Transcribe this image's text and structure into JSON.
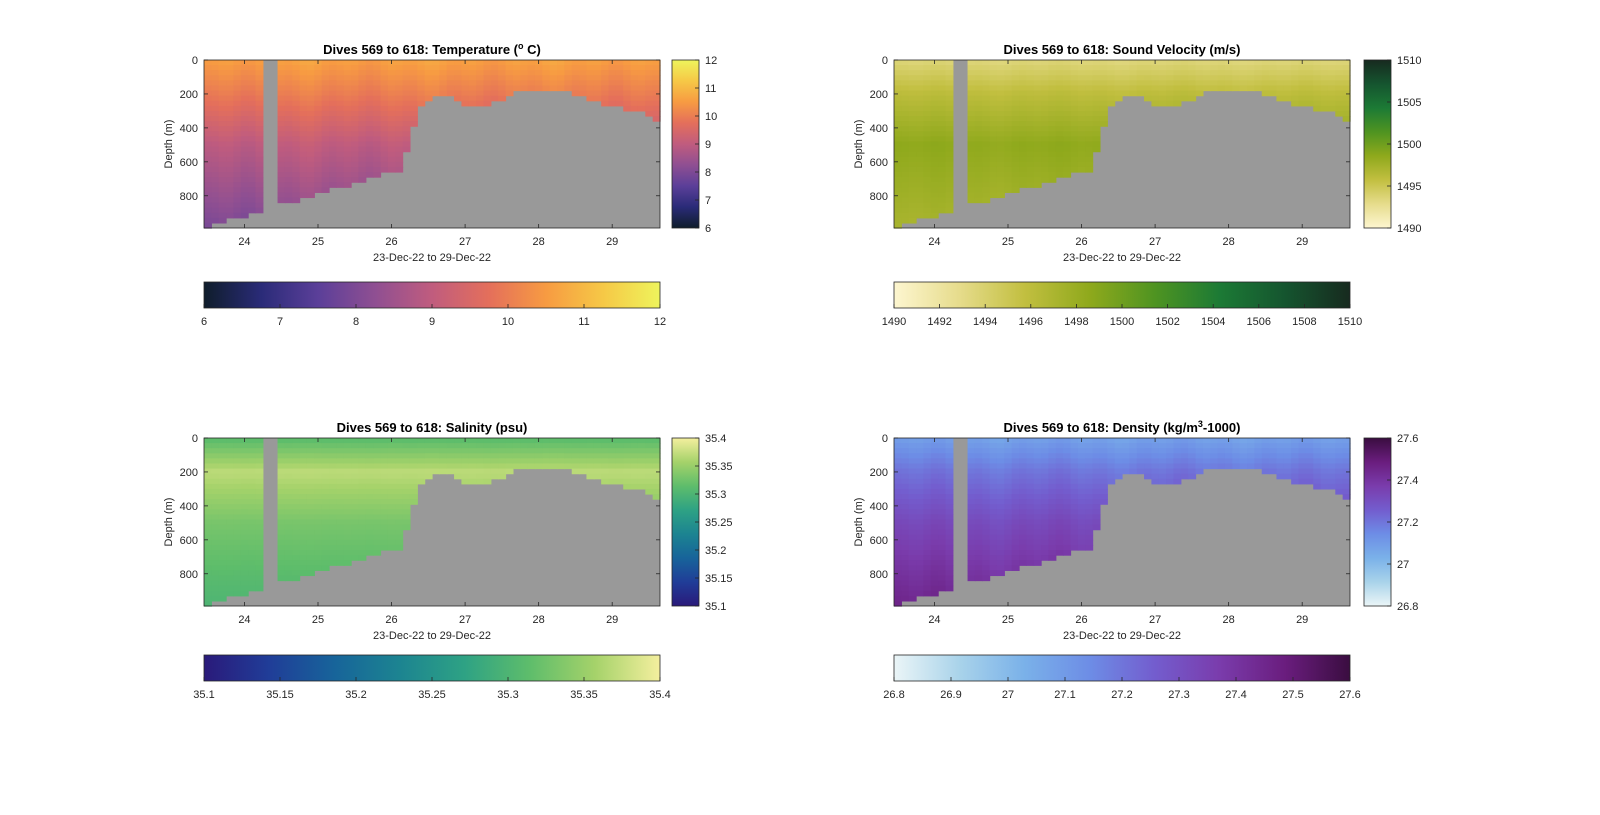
{
  "figure": {
    "background": "#ffffff",
    "no_data_color": "#999999"
  },
  "chart_data": [
    {
      "type": "heatmap",
      "id": "temp",
      "title": "Dives 569 to 618: Temperature (°C)",
      "title_parts": {
        "pre": "Dives 569 to 618: Temperature (",
        "sup": "o",
        "post": " C)"
      },
      "xlabel": "23-Dec-22 to 29-Dec-22",
      "ylabel": "Depth (m)",
      "xlim": [
        23.45,
        29.65
      ],
      "ylim": [
        0,
        990
      ],
      "y_reversed": true,
      "x_ticks": [
        24,
        25,
        26,
        27,
        28,
        29
      ],
      "y_ticks": [
        0,
        200,
        400,
        600,
        800
      ],
      "colormap": [
        "#0f1d2b",
        "#2a2b78",
        "#5b3f99",
        "#8f4f92",
        "#c05c7e",
        "#e46f5b",
        "#f79b42",
        "#f6c846",
        "#eef45c"
      ],
      "clim": [
        6,
        12
      ],
      "colorbar_ticks": [
        6,
        7,
        8,
        9,
        10,
        11,
        12
      ],
      "horizontal_colorbar_ticks": [
        6,
        7,
        8,
        9,
        10,
        11,
        12
      ],
      "profile": {
        "surface": 10.6,
        "mid": 10.0,
        "deep": 9.0,
        "bottom": 8.0
      }
    },
    {
      "type": "heatmap",
      "id": "sv",
      "title": "Dives 569 to 618: Sound Velocity (m/s)",
      "xlabel": "23-Dec-22 to 29-Dec-22",
      "ylabel": "Depth (m)",
      "xlim": [
        23.45,
        29.65
      ],
      "ylim": [
        0,
        990
      ],
      "y_reversed": true,
      "x_ticks": [
        24,
        25,
        26,
        27,
        28,
        29
      ],
      "y_ticks": [
        0,
        200,
        400,
        600,
        800
      ],
      "colormap": [
        "#fdf6d0",
        "#e6dc8c",
        "#c2bf40",
        "#8fa91c",
        "#4f9421",
        "#1c7a35",
        "#15552f",
        "#172a1f"
      ],
      "clim": [
        1490,
        1510
      ],
      "colorbar_ticks": [
        1490,
        1495,
        1500,
        1505,
        1510
      ],
      "horizontal_colorbar_ticks": [
        1490,
        1492,
        1494,
        1496,
        1498,
        1500,
        1502,
        1504,
        1506,
        1508,
        1510
      ],
      "profile": {
        "surface": 1493.5,
        "mid": 1496,
        "deep": 1498.5,
        "bottom": 1497
      }
    },
    {
      "type": "heatmap",
      "id": "sal",
      "title": "Dives 569 to 618: Salinity (psu)",
      "xlabel": "23-Dec-22 to 29-Dec-22",
      "ylabel": "Depth (m)",
      "xlim": [
        23.45,
        29.65
      ],
      "ylim": [
        0,
        990
      ],
      "y_reversed": true,
      "x_ticks": [
        24,
        25,
        26,
        27,
        28,
        29
      ],
      "y_ticks": [
        0,
        200,
        400,
        600,
        800
      ],
      "colormap": [
        "#2a1a7a",
        "#203d98",
        "#17649a",
        "#1c8491",
        "#2ea284",
        "#5ebd6b",
        "#a5d26a",
        "#f4ef9e"
      ],
      "clim": [
        35.1,
        35.4
      ],
      "colorbar_ticks": [
        35.1,
        35.15,
        35.2,
        35.25,
        35.3,
        35.35,
        35.4
      ],
      "horizontal_colorbar_ticks": [
        35.1,
        35.15,
        35.2,
        35.25,
        35.3,
        35.35,
        35.4
      ],
      "profile": {
        "surface": 35.31,
        "mid": 35.37,
        "deep": 35.33,
        "bottom": 35.3
      }
    },
    {
      "type": "heatmap",
      "id": "dens",
      "title": "Dives 569 to 618: Density (kg/m³-1000)",
      "title_parts": {
        "pre": "Dives 569 to 618: Density (kg/m",
        "sup": "3",
        "post": "-1000)"
      },
      "xlabel": "23-Dec-22 to 29-Dec-22",
      "ylabel": "Depth (m)",
      "xlim": [
        23.45,
        29.65
      ],
      "ylim": [
        0,
        990
      ],
      "y_reversed": true,
      "x_ticks": [
        24,
        25,
        26,
        27,
        28,
        29
      ],
      "y_ticks": [
        0,
        200,
        400,
        600,
        800
      ],
      "colormap": [
        "#ebf5f7",
        "#a9d3ea",
        "#7ab1e9",
        "#6d8de6",
        "#735dce",
        "#7a3cac",
        "#6a1d7e",
        "#3a0d40"
      ],
      "clim": [
        26.8,
        27.6
      ],
      "colorbar_ticks": [
        26.8,
        27,
        27.2,
        27.4,
        27.6
      ],
      "horizontal_colorbar_ticks": [
        26.8,
        26.9,
        27,
        27.1,
        27.2,
        27.3,
        27.4,
        27.5,
        27.6
      ],
      "profile": {
        "surface": 27.08,
        "mid": 27.2,
        "deep": 27.32,
        "bottom": 27.45
      }
    }
  ],
  "section": {
    "gap_x": [
      24.3,
      24.4
    ],
    "bottom_x": [
      23.45,
      26.15,
      26.28,
      26.4,
      26.6,
      26.75,
      26.9,
      27.1,
      27.3,
      27.5,
      27.7,
      27.9,
      28.1,
      28.3,
      28.5,
      28.7,
      28.9,
      29.1,
      29.3,
      29.5,
      29.65
    ],
    "bottom_depth": [
      990,
      640,
      400,
      280,
      220,
      200,
      240,
      270,
      260,
      230,
      190,
      170,
      175,
      185,
      200,
      230,
      260,
      275,
      300,
      330,
      370
    ]
  }
}
